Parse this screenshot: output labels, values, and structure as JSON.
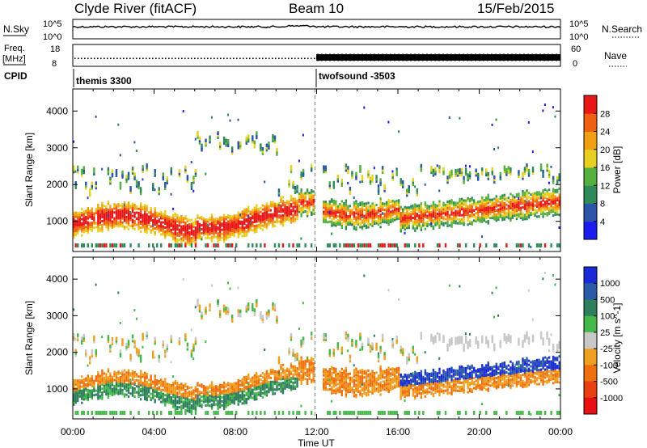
{
  "header": {
    "title": "Clyde River (fitACF)",
    "beam": "Beam 10",
    "date": "15/Feb/2015"
  },
  "top_panels": {
    "nsky": {
      "label": "N.Sky",
      "tick_high": "10^5",
      "tick_low": "10^0"
    },
    "nsearch": {
      "label": "N.Search",
      "tick_high": "10^5",
      "tick_low": "10^0"
    },
    "freq": {
      "label_line1": "Freq.",
      "label_line2": "[MHz]",
      "tick_high": "18",
      "tick_low": "8"
    },
    "nave": {
      "label": "Nave",
      "tick_high": "60",
      "tick_low": "0"
    },
    "cpid": {
      "label": "CPID",
      "mode1": "themis 3300",
      "mode2": "twofsound -3503"
    }
  },
  "chart_data": [
    {
      "type": "heatmap",
      "title": "",
      "ylabel": "Slant Range [km]",
      "ylim": [
        180,
        4600
      ],
      "yticks": [
        1000,
        2000,
        3000,
        4000
      ],
      "ytick_labels": [
        "1000",
        "2000",
        "3000",
        "4000"
      ],
      "xlim_hours": [
        0,
        24
      ],
      "colorbar": {
        "label": "Power [dB]",
        "ticks": [
          "4",
          "8",
          "12",
          "16",
          "20",
          "24",
          "28"
        ],
        "colors": [
          "#1c1cf0",
          "#2a55a8",
          "#2f8a5a",
          "#55b040",
          "#e8d020",
          "#f0a010",
          "#f06010",
          "#e81818"
        ]
      }
    },
    {
      "type": "heatmap",
      "title": "",
      "ylabel": "Slant Range [km]",
      "ylim": [
        180,
        4600
      ],
      "yticks": [
        1000,
        2000,
        3000,
        4000
      ],
      "ytick_labels": [
        "1000",
        "2000",
        "3000",
        "4000"
      ],
      "xlim_hours": [
        0,
        24
      ],
      "xticks_hours": [
        0,
        4,
        8,
        12,
        16,
        20,
        24
      ],
      "xtick_labels": [
        "00:00",
        "04:00",
        "08:00",
        "12:00",
        "16:00",
        "20:00",
        "00:00"
      ],
      "xlabel": "Time UT",
      "colorbar": {
        "label": "Velocity [m s^-1]",
        "ticks": [
          "1000",
          "500",
          "100",
          "25",
          "-25",
          "-100",
          "-500",
          "-1000"
        ],
        "colors": [
          "#1a2ad8",
          "#2a5aa8",
          "#2f7f5f",
          "#44b848",
          "#c8c8c8",
          "#f0a020",
          "#f07010",
          "#e84010",
          "#e81010"
        ]
      }
    }
  ]
}
